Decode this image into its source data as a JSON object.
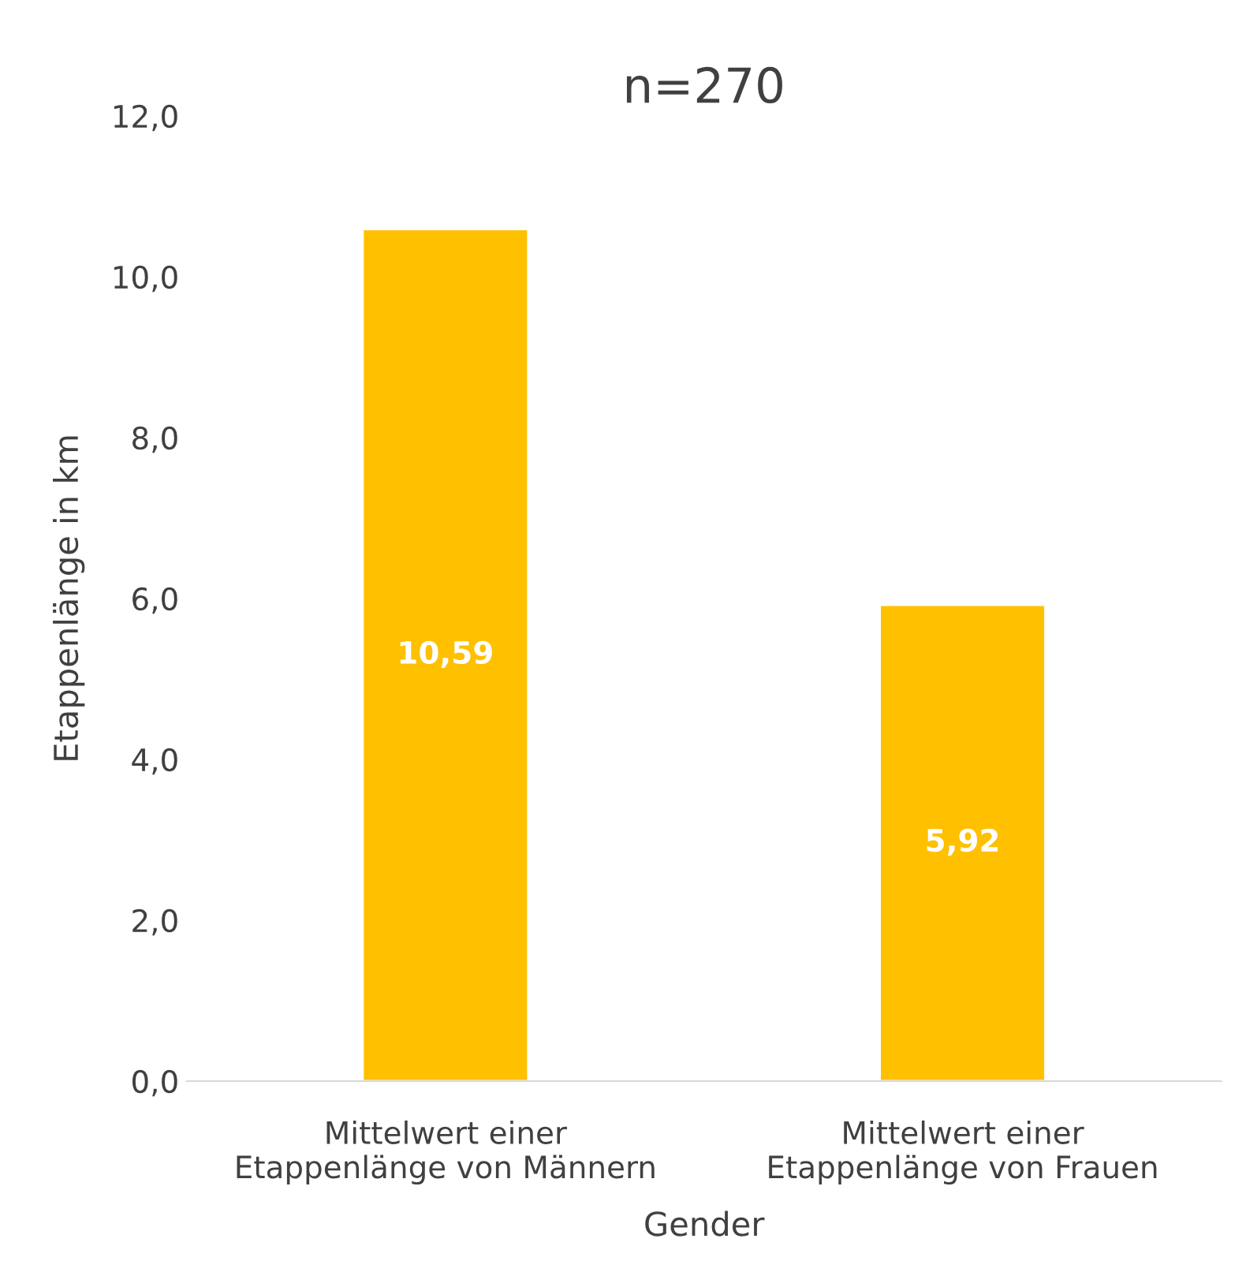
{
  "chart_data": {
    "type": "bar",
    "title": "n=270",
    "xlabel": "Gender",
    "ylabel": "Etappenlänge in km",
    "categories": [
      "Mittelwert einer\nEtappenlänge von Männern",
      "Mittelwert einer\nEtappenlänge von Frauen"
    ],
    "values": [
      10.59,
      5.92
    ],
    "color": "#ffc000",
    "value_labels": [
      "10,59",
      "5,92"
    ],
    "ylim": [
      0,
      12
    ],
    "yticks": [
      {
        "value": 0,
        "label": "0,0"
      },
      {
        "value": 2,
        "label": "2,0"
      },
      {
        "value": 4,
        "label": "4,0"
      },
      {
        "value": 6,
        "label": "6,0"
      },
      {
        "value": 8,
        "label": "8,0"
      },
      {
        "value": 10,
        "label": "10,0"
      },
      {
        "value": 12,
        "label": "12,0"
      }
    ],
    "grid": false,
    "legend": false
  }
}
